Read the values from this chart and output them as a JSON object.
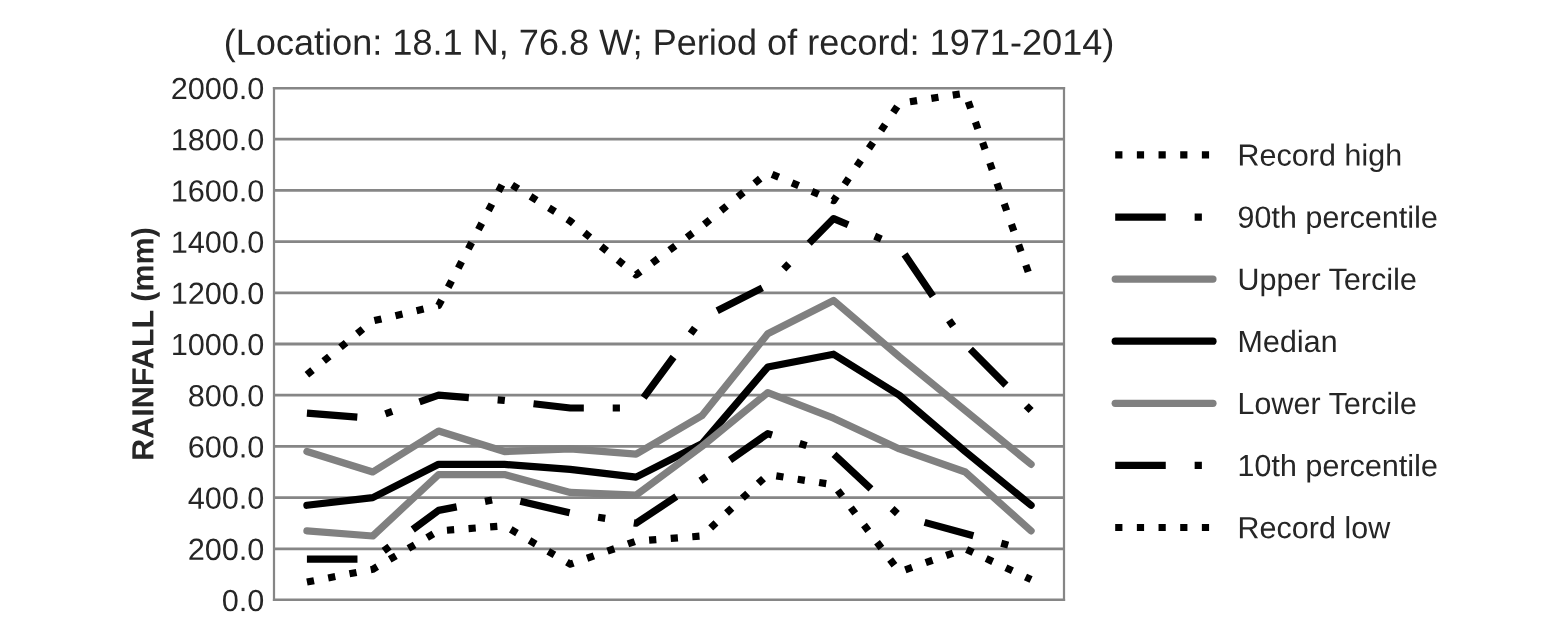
{
  "chart_data": {
    "type": "line",
    "title": "(Location: 18.1 N, 76.8 W; Period of record: 1971-2014)",
    "ylabel": "RAINFALL (mm)",
    "categories": [
      null,
      null,
      null,
      null,
      null,
      null,
      null,
      null,
      null,
      null,
      null,
      null
    ],
    "ylim": [
      0,
      2000
    ],
    "yticks": [
      {
        "value": 0,
        "label": "0.0"
      },
      {
        "value": 200,
        "label": "200.0"
      },
      {
        "value": 400,
        "label": "400.0"
      },
      {
        "value": 600,
        "label": "600.0"
      },
      {
        "value": 800,
        "label": "800.0"
      },
      {
        "value": 1000,
        "label": "1000.0"
      },
      {
        "value": 1200,
        "label": "1200.0"
      },
      {
        "value": 1400,
        "label": "1400.0"
      },
      {
        "value": 1600,
        "label": "1600.0"
      },
      {
        "value": 1800,
        "label": "1800.0"
      },
      {
        "value": 2000,
        "label": "2000.0"
      }
    ],
    "tick_labels": "y",
    "grid": "y",
    "legend": "right",
    "marker": "none",
    "series": [
      {
        "name": "Record high",
        "color": "#000000",
        "line_style": "dotted",
        "values": [
          880,
          1090,
          1150,
          1640,
          1480,
          1270,
          1460,
          1670,
          1560,
          1940,
          1980,
          1250
        ]
      },
      {
        "name": "90th percentile",
        "color": "#000000",
        "line_style": "dashdot",
        "values": [
          730,
          710,
          800,
          780,
          750,
          750,
          1100,
          1230,
          1490,
          1380,
          1000,
          740
        ]
      },
      {
        "name": "Upper Tercile",
        "color": "#808080",
        "line_style": "solid",
        "values": [
          580,
          500,
          660,
          580,
          590,
          570,
          720,
          1040,
          1170,
          950,
          740,
          530
        ]
      },
      {
        "name": "Median",
        "color": "#000000",
        "line_style": "solid",
        "values": [
          370,
          400,
          530,
          530,
          510,
          480,
          610,
          910,
          960,
          800,
          580,
          370
        ]
      },
      {
        "name": "Lower Tercile",
        "color": "#808080",
        "line_style": "solid",
        "values": [
          270,
          250,
          490,
          490,
          420,
          410,
          600,
          810,
          710,
          590,
          500,
          270
        ]
      },
      {
        "name": "10th percentile",
        "color": "#000000",
        "line_style": "dashdot",
        "values": [
          160,
          160,
          350,
          400,
          340,
          300,
          470,
          650,
          570,
          330,
          260,
          190
        ]
      },
      {
        "name": "Record low",
        "color": "#000000",
        "line_style": "dotted",
        "values": [
          70,
          120,
          270,
          290,
          140,
          230,
          250,
          490,
          450,
          110,
          200,
          80
        ]
      }
    ]
  }
}
